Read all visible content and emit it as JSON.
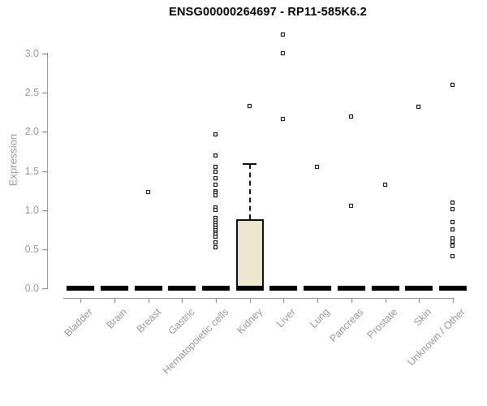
{
  "window": {
    "title": "ENSG00000264697 - RP11-585K6.2"
  },
  "colors": {
    "title": "#000000",
    "axis_line": "#888888",
    "tick_label": "#999999",
    "box_fill": "#ECE7CE",
    "box_line": "#000000",
    "point": "#000000",
    "background": "#ffffff"
  },
  "chart_data": {
    "type": "boxplot",
    "title": "ENSG00000264697 - RP11-585K6.2",
    "xlabel": "",
    "ylabel": "Expression",
    "ylim": [
      0.0,
      3.0
    ],
    "grid": false,
    "legend": "none",
    "yticks": [
      {
        "value": 0.0,
        "label": "0.0"
      },
      {
        "value": 0.5,
        "label": "0.5"
      },
      {
        "value": 1.0,
        "label": "1.0"
      },
      {
        "value": 1.5,
        "label": "1.5"
      },
      {
        "value": 2.0,
        "label": "2.0"
      },
      {
        "value": 2.5,
        "label": "2.5"
      },
      {
        "value": 3.0,
        "label": "3.0"
      }
    ],
    "categories": [
      "Bladder",
      "Brain",
      "Breast",
      "Gastric",
      "Hematopoietic cells",
      "Kidney",
      "Liver",
      "Lung",
      "Pancreas",
      "Prostate",
      "Skin",
      "Unknown / Other"
    ],
    "series": [
      {
        "name": "Bladder",
        "box": {
          "whisker_low": 0,
          "q1": 0,
          "median": 0,
          "q3": 0,
          "whisker_high": 0
        },
        "points": []
      },
      {
        "name": "Brain",
        "box": {
          "whisker_low": 0,
          "q1": 0,
          "median": 0,
          "q3": 0,
          "whisker_high": 0
        },
        "points": []
      },
      {
        "name": "Breast",
        "box": {
          "whisker_low": 0,
          "q1": 0,
          "median": 0,
          "q3": 0,
          "whisker_high": 0
        },
        "points": [
          1.23
        ]
      },
      {
        "name": "Gastric",
        "box": {
          "whisker_low": 0,
          "q1": 0,
          "median": 0,
          "q3": 0,
          "whisker_high": 0
        },
        "points": []
      },
      {
        "name": "Hematopoietic cells",
        "box": {
          "whisker_low": 0,
          "q1": 0,
          "median": 0,
          "q3": 0,
          "whisker_high": 0
        },
        "points": [
          1.96,
          1.69,
          1.55,
          1.48,
          1.4,
          1.32,
          1.24,
          1.21,
          1.18,
          1.03,
          1.0,
          0.89,
          0.86,
          0.83,
          0.8,
          0.77,
          0.74,
          0.71,
          0.68,
          0.65,
          0.58,
          0.52
        ]
      },
      {
        "name": "Kidney",
        "box": {
          "whisker_low": 0,
          "q1": 0,
          "median": 0,
          "q3": 0.88,
          "whisker_high": 1.59
        },
        "points": [
          2.33
        ]
      },
      {
        "name": "Liver",
        "box": {
          "whisker_low": 0,
          "q1": 0,
          "median": 0,
          "q3": 0,
          "whisker_high": 0
        },
        "points": [
          3.24,
          3.0,
          2.16
        ]
      },
      {
        "name": "Lung",
        "box": {
          "whisker_low": 0,
          "q1": 0,
          "median": 0,
          "q3": 0,
          "whisker_high": 0
        },
        "points": [
          1.55
        ]
      },
      {
        "name": "Pancreas",
        "box": {
          "whisker_low": 0,
          "q1": 0,
          "median": 0,
          "q3": 0,
          "whisker_high": 0
        },
        "points": [
          2.19,
          1.05
        ]
      },
      {
        "name": "Prostate",
        "box": {
          "whisker_low": 0,
          "q1": 0,
          "median": 0,
          "q3": 0,
          "whisker_high": 0
        },
        "points": [
          1.32
        ]
      },
      {
        "name": "Skin",
        "box": {
          "whisker_low": 0,
          "q1": 0,
          "median": 0,
          "q3": 0,
          "whisker_high": 0
        },
        "points": [
          2.31
        ]
      },
      {
        "name": "Unknown / Other",
        "box": {
          "whisker_low": 0,
          "q1": 0,
          "median": 0,
          "q3": 0,
          "whisker_high": 0
        },
        "points": [
          2.6,
          1.09,
          1.01,
          0.84,
          0.75,
          0.63,
          0.59,
          0.54,
          0.4
        ]
      }
    ]
  }
}
